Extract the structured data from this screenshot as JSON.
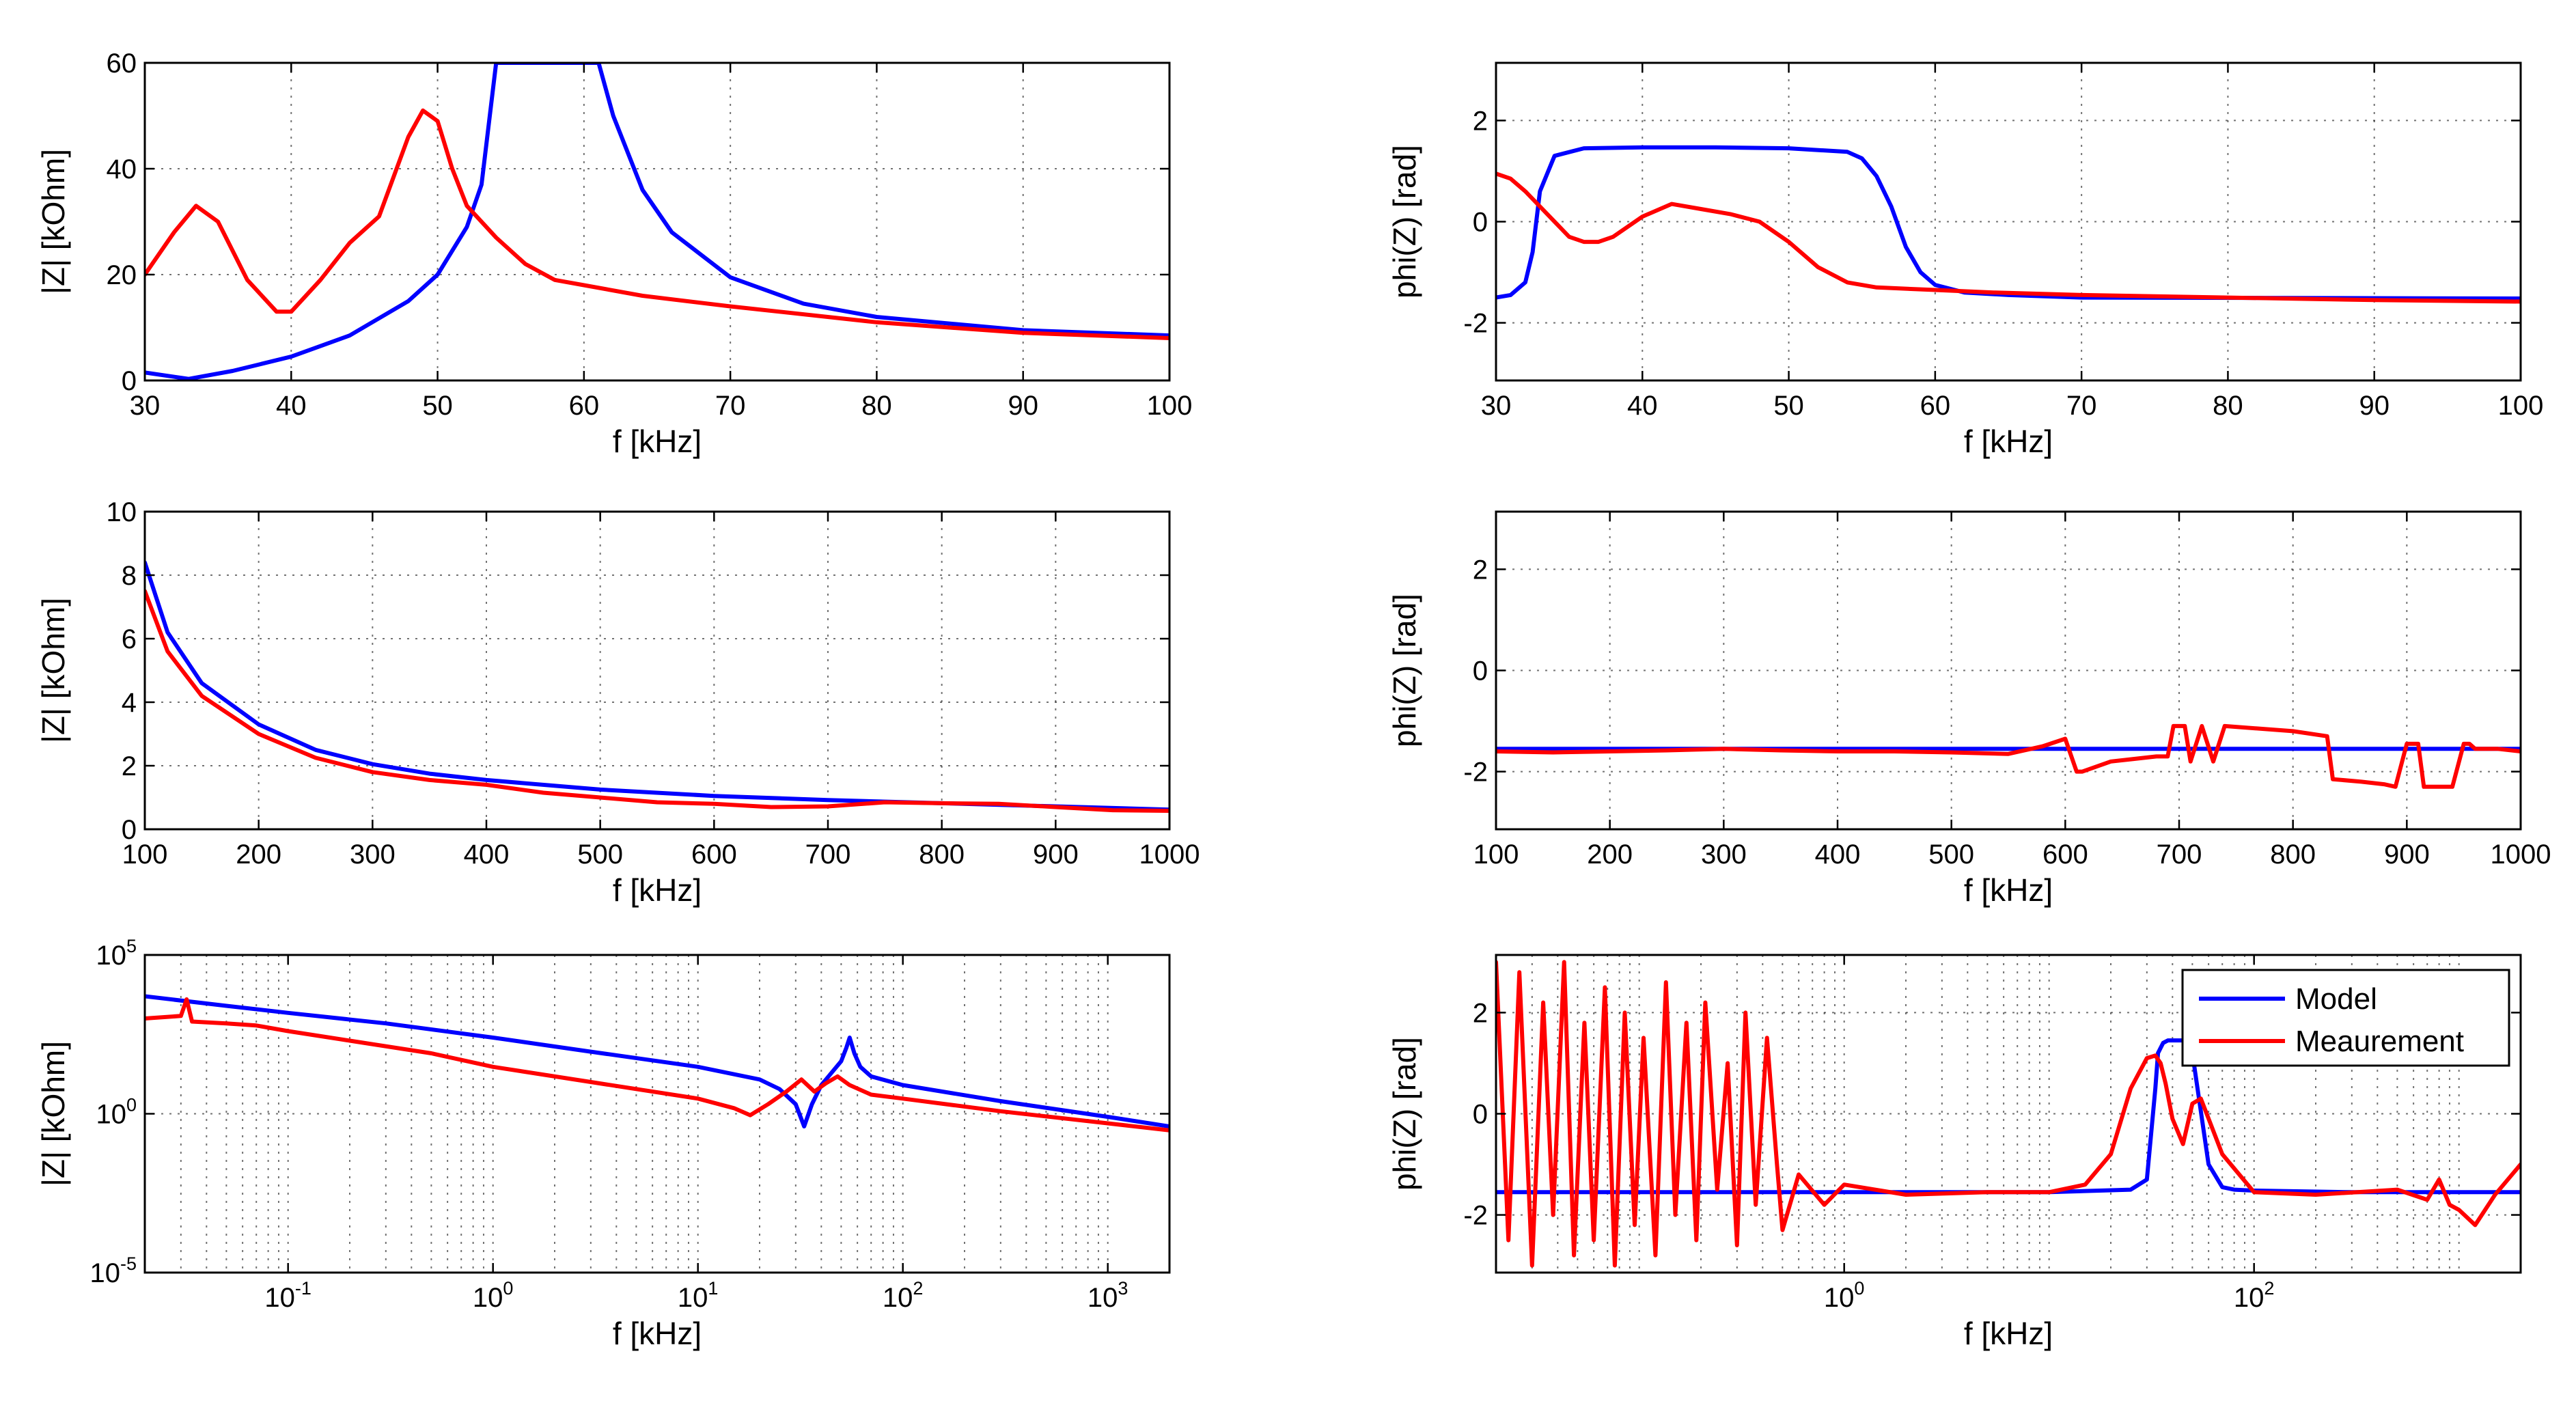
{
  "colors": {
    "model": "#0000ff",
    "measurement": "#ff0000"
  },
  "legend": {
    "model_label": "Model",
    "measurement_label": "Meaurement"
  },
  "chart_data": [
    {
      "id": "mag-30-100",
      "type": "line",
      "xscale": "linear",
      "yscale": "linear",
      "xlabel": "f [kHz]",
      "ylabel": "|Z| [kOhm]",
      "xlim": [
        30,
        100
      ],
      "ylim": [
        0,
        60
      ],
      "xticks": [
        30,
        40,
        50,
        60,
        70,
        80,
        90,
        100
      ],
      "yticks": [
        0,
        20,
        40,
        60
      ],
      "series": [
        {
          "name": "Model",
          "x": [
            30,
            33,
            36,
            40,
            44,
            48,
            50,
            52,
            53,
            54,
            61,
            62,
            64,
            66,
            70,
            75,
            80,
            90,
            100
          ],
          "y": [
            1.5,
            0.3,
            1.8,
            4.5,
            8.5,
            15,
            20,
            29,
            37,
            60,
            60,
            50,
            36,
            28,
            19.5,
            14.5,
            12,
            9.5,
            8.5
          ]
        },
        {
          "name": "Meaurement",
          "x": [
            30,
            32,
            33.5,
            35,
            37,
            39,
            40,
            42,
            44,
            46,
            48,
            49,
            50,
            51,
            52,
            54,
            56,
            58,
            60,
            64,
            70,
            80,
            90,
            100
          ],
          "y": [
            20,
            28,
            33,
            30,
            19,
            13,
            13,
            19,
            26,
            31,
            46,
            51,
            49,
            40,
            33,
            27,
            22,
            19,
            18,
            16,
            14,
            11,
            9,
            8
          ]
        }
      ]
    },
    {
      "id": "phase-30-100",
      "type": "line",
      "xscale": "linear",
      "yscale": "linear",
      "xlabel": "f [kHz]",
      "ylabel": "phi(Z) [rad]",
      "xlim": [
        30,
        100
      ],
      "ylim": [
        -3.14,
        3.14
      ],
      "xticks": [
        30,
        40,
        50,
        60,
        70,
        80,
        90,
        100
      ],
      "yticks": [
        -2,
        0,
        2
      ],
      "series": [
        {
          "name": "Model",
          "x": [
            30,
            31,
            32,
            32.5,
            33,
            34,
            36,
            40,
            45,
            50,
            54,
            55,
            56,
            57,
            58,
            59,
            60,
            62,
            65,
            70,
            100
          ],
          "y": [
            -1.5,
            -1.45,
            -1.2,
            -0.6,
            0.6,
            1.3,
            1.45,
            1.47,
            1.47,
            1.45,
            1.38,
            1.25,
            0.9,
            0.3,
            -0.5,
            -1.0,
            -1.25,
            -1.4,
            -1.45,
            -1.5,
            -1.52
          ]
        },
        {
          "name": "Meaurement",
          "x": [
            30,
            31,
            32,
            33,
            34,
            35,
            36,
            37,
            38,
            40,
            42,
            44,
            46,
            48,
            50,
            52,
            54,
            56,
            60,
            64,
            70,
            80,
            90,
            100
          ],
          "y": [
            0.95,
            0.85,
            0.6,
            0.3,
            0.0,
            -0.3,
            -0.4,
            -0.4,
            -0.3,
            0.1,
            0.35,
            0.25,
            0.15,
            0.0,
            -0.4,
            -0.9,
            -1.2,
            -1.3,
            -1.35,
            -1.4,
            -1.45,
            -1.5,
            -1.55,
            -1.58
          ]
        }
      ]
    },
    {
      "id": "mag-100-1000",
      "type": "line",
      "xscale": "linear",
      "yscale": "linear",
      "xlabel": "f [kHz]",
      "ylabel": "|Z| [kOhm]",
      "xlim": [
        100,
        1000
      ],
      "ylim": [
        0,
        10
      ],
      "xticks": [
        100,
        200,
        300,
        400,
        500,
        600,
        700,
        800,
        900,
        1000
      ],
      "yticks": [
        0,
        2,
        4,
        6,
        8,
        10
      ],
      "series": [
        {
          "name": "Model",
          "x": [
            100,
            120,
            150,
            200,
            250,
            300,
            350,
            400,
            500,
            600,
            700,
            800,
            900,
            1000
          ],
          "y": [
            8.4,
            6.2,
            4.6,
            3.3,
            2.5,
            2.05,
            1.75,
            1.55,
            1.25,
            1.05,
            0.92,
            0.82,
            0.72,
            0.62
          ]
        },
        {
          "name": "Meaurement",
          "x": [
            100,
            120,
            150,
            200,
            250,
            300,
            350,
            400,
            450,
            500,
            550,
            600,
            650,
            700,
            750,
            800,
            850,
            900,
            950,
            1000
          ],
          "y": [
            7.5,
            5.6,
            4.2,
            3.0,
            2.25,
            1.8,
            1.55,
            1.4,
            1.15,
            1.0,
            0.85,
            0.8,
            0.7,
            0.72,
            0.85,
            0.82,
            0.8,
            0.7,
            0.6,
            0.58
          ]
        }
      ]
    },
    {
      "id": "phase-100-1000",
      "type": "line",
      "xscale": "linear",
      "yscale": "linear",
      "xlabel": "f [kHz]",
      "ylabel": "phi(Z) [rad]",
      "xlim": [
        100,
        1000
      ],
      "ylim": [
        -3.14,
        3.14
      ],
      "xticks": [
        100,
        200,
        300,
        400,
        500,
        600,
        700,
        800,
        900,
        1000
      ],
      "yticks": [
        -2,
        0,
        2
      ],
      "series": [
        {
          "name": "Model",
          "x": [
            100,
            1000
          ],
          "y": [
            -1.55,
            -1.55
          ]
        },
        {
          "name": "Meaurement",
          "x": [
            100,
            150,
            200,
            250,
            300,
            350,
            400,
            450,
            500,
            550,
            580,
            600,
            610,
            615,
            640,
            660,
            680,
            690,
            695,
            705,
            710,
            720,
            730,
            740,
            800,
            830,
            835,
            860,
            880,
            890,
            900,
            910,
            915,
            930,
            940,
            950,
            955,
            960,
            980,
            1000
          ],
          "y": [
            -1.6,
            -1.62,
            -1.6,
            -1.58,
            -1.55,
            -1.58,
            -1.6,
            -1.6,
            -1.62,
            -1.65,
            -1.5,
            -1.35,
            -2.0,
            -2.0,
            -1.8,
            -1.75,
            -1.7,
            -1.7,
            -1.1,
            -1.1,
            -1.8,
            -1.1,
            -1.8,
            -1.1,
            -1.2,
            -1.3,
            -2.15,
            -2.2,
            -2.25,
            -2.3,
            -1.45,
            -1.45,
            -2.3,
            -2.3,
            -2.3,
            -1.45,
            -1.45,
            -1.55,
            -1.55,
            -1.6
          ]
        }
      ]
    },
    {
      "id": "mag-log",
      "type": "line",
      "xscale": "log",
      "yscale": "log",
      "xlabel": "f [kHz]",
      "ylabel": "|Z| [kOhm]",
      "xlim": [
        0.02,
        2000
      ],
      "ylim": [
        1e-05,
        100000
      ],
      "xticks": [
        0.1,
        1,
        10,
        100,
        1000
      ],
      "xtick_labels": [
        "10^-1",
        "10^0",
        "10^1",
        "10^2",
        "10^3"
      ],
      "yticks": [
        1e-05,
        1,
        100000
      ],
      "ytick_labels": [
        "10^-5",
        "10^0",
        "10^5"
      ],
      "series": [
        {
          "name": "Model",
          "x": [
            0.02,
            0.05,
            0.1,
            0.3,
            1,
            3,
            10,
            20,
            25,
            30,
            33,
            36,
            40,
            45,
            50,
            53,
            55,
            58,
            62,
            70,
            100,
            300,
            1000,
            2000
          ],
          "y": [
            5000,
            2500,
            1500,
            700,
            250,
            90,
            30,
            12,
            6,
            2,
            0.4,
            2,
            8,
            20,
            45,
            120,
            250,
            80,
            30,
            15,
            8,
            2.5,
            0.8,
            0.4
          ]
        },
        {
          "name": "Meaurement",
          "x": [
            0.02,
            0.03,
            0.032,
            0.034,
            0.05,
            0.07,
            0.1,
            0.2,
            0.5,
            1,
            3,
            10,
            15,
            18,
            22,
            27,
            32,
            37,
            42,
            48,
            55,
            70,
            100,
            300,
            1000,
            2000
          ],
          "y": [
            1000,
            1200,
            4000,
            800,
            700,
            600,
            400,
            200,
            80,
            30,
            10,
            3,
            1.5,
            0.9,
            2,
            5,
            12,
            5,
            9,
            15,
            8,
            4,
            3,
            1.2,
            0.5,
            0.3
          ]
        }
      ]
    },
    {
      "id": "phase-log",
      "type": "line",
      "xscale": "log",
      "yscale": "linear",
      "xlabel": "f [kHz]",
      "ylabel": "phi(Z) [rad]",
      "xlim": [
        0.02,
        2000
      ],
      "ylim": [
        -3.14,
        3.14
      ],
      "xticks": [
        1,
        100
      ],
      "xtick_labels": [
        "10^0",
        "10^2"
      ],
      "yticks": [
        -2,
        0,
        2
      ],
      "series": [
        {
          "name": "Model",
          "x": [
            0.02,
            1,
            10,
            25,
            30,
            33,
            34,
            36,
            38,
            40,
            45,
            48,
            50,
            60,
            70,
            80,
            100,
            300,
            1000,
            2000
          ],
          "y": [
            -1.55,
            -1.55,
            -1.55,
            -1.5,
            -1.3,
            0.5,
            1.2,
            1.4,
            1.45,
            1.45,
            1.45,
            1.4,
            1.2,
            -1.0,
            -1.45,
            -1.5,
            -1.52,
            -1.55,
            -1.55,
            -1.55
          ]
        },
        {
          "name": "Meaurement",
          "x": [
            0.02,
            0.023,
            0.026,
            0.03,
            0.034,
            0.038,
            0.043,
            0.048,
            0.054,
            0.06,
            0.068,
            0.076,
            0.085,
            0.095,
            0.105,
            0.12,
            0.135,
            0.15,
            0.17,
            0.19,
            0.21,
            0.24,
            0.27,
            0.3,
            0.33,
            0.37,
            0.42,
            0.47,
            0.5,
            0.6,
            0.8,
            1,
            2,
            5,
            10,
            15,
            20,
            25,
            30,
            33,
            35,
            37,
            40,
            45,
            50,
            55,
            70,
            100,
            200,
            500,
            700,
            800,
            900,
            1000,
            1200,
            1500,
            2000
          ],
          "y": [
            3.0,
            -2.5,
            2.8,
            -3.0,
            2.2,
            -2.0,
            3.0,
            -2.8,
            1.8,
            -2.5,
            2.5,
            -3.0,
            2.0,
            -2.2,
            1.5,
            -2.8,
            2.6,
            -2.0,
            1.8,
            -2.5,
            2.2,
            -1.5,
            1.0,
            -2.6,
            2.0,
            -1.8,
            1.5,
            -1.0,
            -2.3,
            -1.2,
            -1.8,
            -1.4,
            -1.6,
            -1.55,
            -1.55,
            -1.4,
            -0.8,
            0.5,
            1.1,
            1.15,
            1.0,
            0.6,
            -0.1,
            -0.6,
            0.2,
            0.3,
            -0.8,
            -1.55,
            -1.6,
            -1.5,
            -1.7,
            -1.3,
            -1.8,
            -1.9,
            -2.2,
            -1.6,
            -1.0
          ]
        }
      ]
    }
  ]
}
